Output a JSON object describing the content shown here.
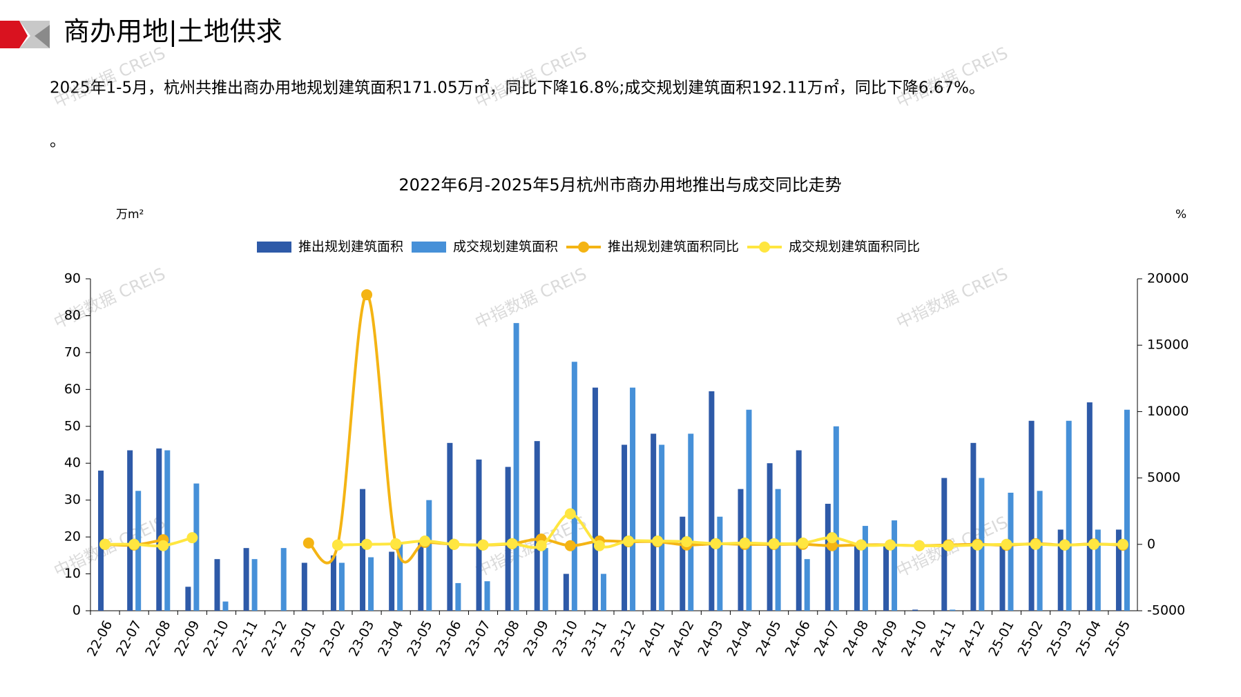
{
  "header": {
    "title": "商办用地|土地供求"
  },
  "paragraph": "2025年1-5月，杭州共推出商办用地规划建筑面积171.05万㎡，同比下降16.8%;成交规划建筑面积192.11万㎡，同比下降6.67%。",
  "paragraph_2": "。",
  "watermark": "中指数据 CREIS",
  "chart_data": {
    "type": "bar-line",
    "title": "2022年6月-2025年5月杭州市商办用地推出与成交同比走势",
    "y_label": "万m²",
    "y2_label": "%",
    "categories": [
      "22-06",
      "22-07",
      "22-08",
      "22-09",
      "22-10",
      "22-11",
      "22-12",
      "23-01",
      "23-02",
      "23-03",
      "23-04",
      "23-05",
      "23-06",
      "23-07",
      "23-08",
      "23-09",
      "23-10",
      "23-11",
      "23-12",
      "24-01",
      "24-02",
      "24-03",
      "24-04",
      "24-05",
      "24-06",
      "24-07",
      "24-08",
      "24-09",
      "24-10",
      "24-11",
      "24-12",
      "25-01",
      "25-02",
      "25-03",
      "25-04",
      "25-05"
    ],
    "ylim": [
      0,
      90
    ],
    "yticks": [
      0,
      10,
      20,
      30,
      40,
      50,
      60,
      70,
      80,
      90
    ],
    "y2lim": [
      -5000,
      20000
    ],
    "y2ticks": [
      -5000,
      0,
      5000,
      10000,
      15000,
      20000
    ],
    "series": [
      {
        "name": "推出规划建筑面积",
        "type": "bar",
        "color": "#2e5aa8",
        "values": [
          38,
          43.5,
          44,
          6.5,
          14,
          17,
          0,
          13,
          15,
          33,
          16,
          19,
          45.5,
          41,
          39,
          46,
          10,
          60.5,
          45,
          48,
          25.5,
          59.5,
          33,
          40,
          43.5,
          29,
          18,
          18,
          0.3,
          36,
          45.5,
          18,
          51.5,
          22,
          56.5,
          22
        ]
      },
      {
        "name": "成交规划建筑面积",
        "type": "bar",
        "color": "#4690d8",
        "values": [
          0,
          32.5,
          43.5,
          34.5,
          2.5,
          14,
          17,
          0,
          13,
          14.5,
          18,
          30,
          7.5,
          8,
          78,
          17,
          67.5,
          10,
          60.5,
          45,
          48,
          25.5,
          54.5,
          33,
          14,
          50,
          23,
          24.5,
          0,
          0.3,
          36,
          32,
          32.5,
          51.5,
          22,
          54.5
        ]
      },
      {
        "name": "推出规划建筑面积同比",
        "type": "line",
        "axis": "y2",
        "color": "#f4b414",
        "values": [
          0,
          -50,
          350,
          null,
          null,
          null,
          null,
          100,
          -50,
          18800,
          0,
          150,
          0,
          -50,
          50,
          400,
          -100,
          250,
          200,
          200,
          -50,
          50,
          0,
          0,
          0,
          -100,
          -40,
          -40,
          -100,
          -50,
          0,
          -60,
          50,
          -50,
          30,
          -60
        ]
      },
      {
        "name": "成交规划建筑面积同比",
        "type": "line",
        "axis": "y2",
        "color": "#ffe640",
        "values": [
          0,
          0,
          -100,
          500,
          null,
          null,
          null,
          null,
          -50,
          0,
          50,
          250,
          0,
          -50,
          50,
          -100,
          2300,
          -100,
          250,
          250,
          200,
          50,
          100,
          50,
          100,
          500,
          -50,
          -50,
          -100,
          -100,
          -50,
          0,
          0,
          -50,
          0,
          0
        ]
      }
    ]
  }
}
